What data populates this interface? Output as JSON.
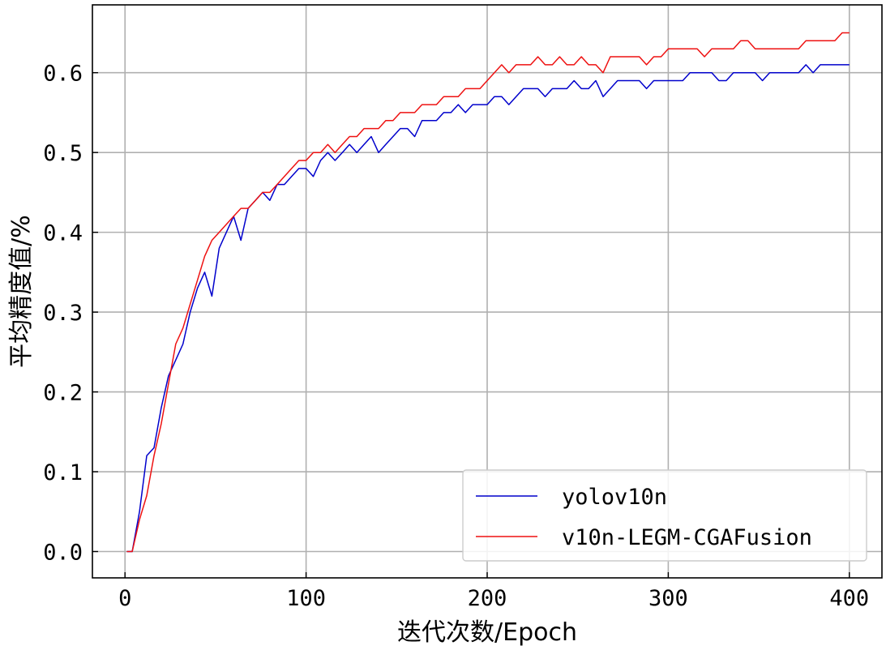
{
  "chart_data": {
    "type": "line",
    "title": "",
    "xlabel": "迭代次数/Epoch",
    "ylabel": "平均精度值/%",
    "xlim": [
      -18,
      418
    ],
    "ylim": [
      -0.033,
      0.685
    ],
    "xticks": [
      0,
      100,
      200,
      300,
      400
    ],
    "xtick_labels": [
      "0",
      "100",
      "200",
      "300",
      "400"
    ],
    "yticks": [
      0.0,
      0.1,
      0.2,
      0.3,
      0.4,
      0.5,
      0.6
    ],
    "ytick_labels": [
      "0.0",
      "0.1",
      "0.2",
      "0.3",
      "0.4",
      "0.5",
      "0.6"
    ],
    "grid": true,
    "legend_position": "bottom-right",
    "series": [
      {
        "name": "yolov10n",
        "color": "#0000cc",
        "x": [
          1,
          4,
          8,
          12,
          16,
          20,
          24,
          28,
          32,
          36,
          40,
          44,
          48,
          52,
          56,
          60,
          64,
          68,
          72,
          76,
          80,
          84,
          88,
          92,
          96,
          100,
          104,
          108,
          112,
          116,
          120,
          124,
          128,
          132,
          136,
          140,
          144,
          148,
          152,
          156,
          160,
          164,
          168,
          172,
          176,
          180,
          184,
          188,
          192,
          196,
          200,
          204,
          208,
          212,
          216,
          220,
          224,
          228,
          232,
          236,
          240,
          244,
          248,
          252,
          256,
          260,
          264,
          268,
          272,
          276,
          280,
          284,
          288,
          292,
          296,
          300,
          304,
          308,
          312,
          316,
          320,
          324,
          328,
          332,
          336,
          340,
          344,
          348,
          352,
          356,
          360,
          364,
          368,
          372,
          376,
          380,
          384,
          388,
          392,
          396,
          400
        ],
        "y": [
          0.0,
          0.0,
          0.05,
          0.12,
          0.13,
          0.18,
          0.22,
          0.24,
          0.26,
          0.3,
          0.33,
          0.35,
          0.32,
          0.38,
          0.4,
          0.42,
          0.39,
          0.43,
          0.44,
          0.45,
          0.44,
          0.46,
          0.46,
          0.47,
          0.48,
          0.48,
          0.47,
          0.49,
          0.5,
          0.49,
          0.5,
          0.51,
          0.5,
          0.51,
          0.52,
          0.5,
          0.51,
          0.52,
          0.53,
          0.53,
          0.52,
          0.54,
          0.54,
          0.54,
          0.55,
          0.55,
          0.56,
          0.55,
          0.56,
          0.56,
          0.56,
          0.57,
          0.57,
          0.56,
          0.57,
          0.58,
          0.58,
          0.58,
          0.57,
          0.58,
          0.58,
          0.58,
          0.59,
          0.58,
          0.58,
          0.59,
          0.57,
          0.58,
          0.59,
          0.59,
          0.59,
          0.59,
          0.58,
          0.59,
          0.59,
          0.59,
          0.59,
          0.59,
          0.6,
          0.6,
          0.6,
          0.6,
          0.59,
          0.59,
          0.6,
          0.6,
          0.6,
          0.6,
          0.59,
          0.6,
          0.6,
          0.6,
          0.6,
          0.6,
          0.61,
          0.6,
          0.61,
          0.61,
          0.61,
          0.61,
          0.61
        ]
      },
      {
        "name": "v10n-LEGM-CGAFusion",
        "color": "#ee1111",
        "x": [
          1,
          4,
          8,
          12,
          16,
          20,
          24,
          28,
          32,
          36,
          40,
          44,
          48,
          52,
          56,
          60,
          64,
          68,
          72,
          76,
          80,
          84,
          88,
          92,
          96,
          100,
          104,
          108,
          112,
          116,
          120,
          124,
          128,
          132,
          136,
          140,
          144,
          148,
          152,
          156,
          160,
          164,
          168,
          172,
          176,
          180,
          184,
          188,
          192,
          196,
          200,
          204,
          208,
          212,
          216,
          220,
          224,
          228,
          232,
          236,
          240,
          244,
          248,
          252,
          256,
          260,
          264,
          268,
          272,
          276,
          280,
          284,
          288,
          292,
          296,
          300,
          304,
          308,
          312,
          316,
          320,
          324,
          328,
          332,
          336,
          340,
          344,
          348,
          352,
          356,
          360,
          364,
          368,
          372,
          376,
          380,
          384,
          388,
          392,
          396,
          400
        ],
        "y": [
          0.0,
          0.0,
          0.04,
          0.07,
          0.12,
          0.16,
          0.21,
          0.26,
          0.28,
          0.31,
          0.34,
          0.37,
          0.39,
          0.4,
          0.41,
          0.42,
          0.43,
          0.43,
          0.44,
          0.45,
          0.45,
          0.46,
          0.47,
          0.48,
          0.49,
          0.49,
          0.5,
          0.5,
          0.51,
          0.5,
          0.51,
          0.52,
          0.52,
          0.53,
          0.53,
          0.53,
          0.54,
          0.54,
          0.55,
          0.55,
          0.55,
          0.56,
          0.56,
          0.56,
          0.57,
          0.57,
          0.57,
          0.58,
          0.58,
          0.58,
          0.59,
          0.6,
          0.61,
          0.6,
          0.61,
          0.61,
          0.61,
          0.62,
          0.61,
          0.61,
          0.62,
          0.61,
          0.61,
          0.62,
          0.61,
          0.61,
          0.6,
          0.62,
          0.62,
          0.62,
          0.62,
          0.62,
          0.61,
          0.62,
          0.62,
          0.63,
          0.63,
          0.63,
          0.63,
          0.63,
          0.62,
          0.63,
          0.63,
          0.63,
          0.63,
          0.64,
          0.64,
          0.63,
          0.63,
          0.63,
          0.63,
          0.63,
          0.63,
          0.63,
          0.64,
          0.64,
          0.64,
          0.64,
          0.64,
          0.65,
          0.65
        ]
      }
    ]
  }
}
